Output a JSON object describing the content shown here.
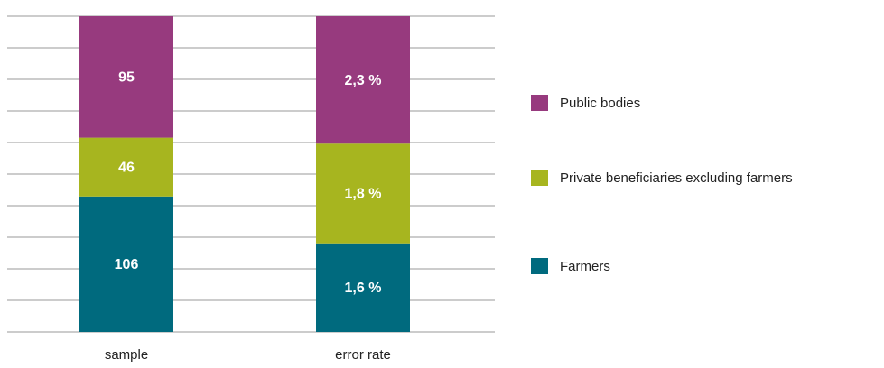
{
  "chart_data": {
    "type": "stacked_bar_100",
    "categories": [
      "sample",
      "error rate"
    ],
    "series": [
      {
        "name": "Farmers",
        "color": "#006a7e",
        "values": [
          106,
          1.6
        ],
        "value_labels": [
          "106",
          "1,6 %"
        ]
      },
      {
        "name": "Private beneficiaries excluding farmers",
        "color": "#a7b51f",
        "values": [
          46,
          1.8
        ],
        "value_labels": [
          "46",
          "1,8 %"
        ]
      },
      {
        "name": "Public bodies",
        "color": "#973a7e",
        "values": [
          95,
          2.3
        ],
        "value_labels": [
          "95",
          "2,3 %"
        ]
      }
    ],
    "grid": true,
    "legend": "right"
  }
}
